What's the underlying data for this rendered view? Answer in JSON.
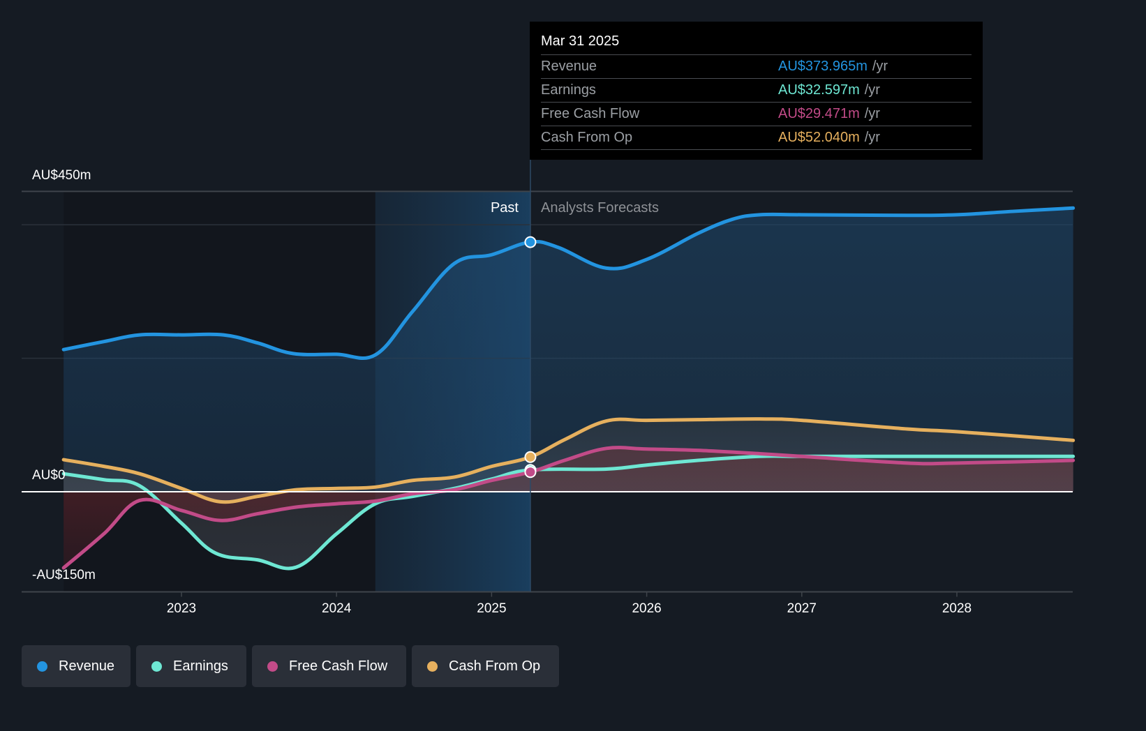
{
  "tooltip": {
    "date": "Mar 31 2025",
    "unit": "/yr",
    "rows": [
      {
        "label": "Revenue",
        "value": "AU$373.965m",
        "color": "#2394e0"
      },
      {
        "label": "Earnings",
        "value": "AU$32.597m",
        "color": "#6ee7d3"
      },
      {
        "label": "Free Cash Flow",
        "value": "AU$29.471m",
        "color": "#c24b88"
      },
      {
        "label": "Cash From Op",
        "value": "AU$52.040m",
        "color": "#e6b05e"
      }
    ]
  },
  "sections": {
    "past": "Past",
    "forecast": "Analysts Forecasts"
  },
  "legend": [
    {
      "label": "Revenue",
      "color": "#2394e0"
    },
    {
      "label": "Earnings",
      "color": "#6ee7d3"
    },
    {
      "label": "Free Cash Flow",
      "color": "#c24b88"
    },
    {
      "label": "Cash From Op",
      "color": "#e6b05e"
    }
  ],
  "chart_data": {
    "type": "line",
    "title": "",
    "xlabel": "",
    "ylabel": "",
    "y_unit": "AU$ millions",
    "ylim": [
      -150,
      450
    ],
    "xlim": [
      2022.24,
      2028.75
    ],
    "y_tick_labels": [
      {
        "value": 450,
        "label": "AU$450m"
      },
      {
        "value": 0,
        "label": "AU$0"
      },
      {
        "value": -150,
        "label": "-AU$150m"
      }
    ],
    "y_gridlines": [
      450,
      400,
      200,
      0,
      -150
    ],
    "x_ticks": [
      {
        "value": 2023,
        "label": "2023"
      },
      {
        "value": 2024,
        "label": "2024"
      },
      {
        "value": 2025,
        "label": "2025"
      },
      {
        "value": 2026,
        "label": "2026"
      },
      {
        "value": 2027,
        "label": "2027"
      },
      {
        "value": 2028,
        "label": "2028"
      }
    ],
    "past_region_start": 2024.25,
    "forecast_start": 2025.25,
    "highlight_date": "Mar 31 2025",
    "legend_position": "bottom-left",
    "series": [
      {
        "name": "Revenue",
        "color": "#2394e0",
        "x": [
          2022.24,
          2022.5,
          2022.73,
          2023.0,
          2023.27,
          2023.49,
          2023.72,
          2024.0,
          2024.25,
          2024.49,
          2024.76,
          2025.0,
          2025.25,
          2025.43,
          2025.74,
          2026.0,
          2026.33,
          2026.55,
          2026.73,
          2027.0,
          2027.68,
          2028.0,
          2028.36,
          2028.75
        ],
        "values": [
          213,
          225,
          235,
          235,
          235,
          223,
          207,
          206,
          205,
          270,
          342,
          355,
          374,
          366,
          335,
          348,
          387,
          408,
          415,
          415,
          414,
          415,
          420,
          425
        ]
      },
      {
        "name": "Earnings",
        "color": "#6ee7d3",
        "x": [
          2022.24,
          2022.5,
          2022.73,
          2023.0,
          2023.22,
          2023.49,
          2023.74,
          2024.0,
          2024.25,
          2024.49,
          2024.76,
          2025.0,
          2025.25,
          2025.74,
          2026.0,
          2026.33,
          2026.73,
          2027.0,
          2027.68,
          2028.75
        ],
        "values": [
          27,
          18,
          9,
          -47,
          -92,
          -102,
          -113,
          -63,
          -18,
          -7,
          5,
          19,
          32.6,
          34,
          40,
          47,
          53,
          53,
          53,
          53
        ]
      },
      {
        "name": "Free Cash Flow",
        "color": "#c24b88",
        "x": [
          2022.24,
          2022.5,
          2022.73,
          2023.0,
          2023.25,
          2023.49,
          2023.74,
          2024.0,
          2024.25,
          2024.49,
          2024.76,
          2025.0,
          2025.25,
          2025.47,
          2025.74,
          2026.0,
          2026.33,
          2026.73,
          2027.0,
          2027.68,
          2028.0,
          2028.75
        ],
        "values": [
          -114,
          -63,
          -13,
          -28,
          -43,
          -33,
          -23,
          -18,
          -14,
          -3,
          3,
          17,
          29.5,
          47,
          65,
          64,
          62,
          57,
          53,
          43,
          43,
          47
        ]
      },
      {
        "name": "Cash From Op",
        "color": "#e6b05e",
        "x": [
          2022.24,
          2022.5,
          2022.73,
          2023.0,
          2023.25,
          2023.49,
          2023.74,
          2024.0,
          2024.25,
          2024.49,
          2024.76,
          2025.0,
          2025.25,
          2025.47,
          2025.74,
          2026.0,
          2026.33,
          2026.73,
          2027.0,
          2027.68,
          2028.0,
          2028.75
        ],
        "values": [
          48,
          38,
          27,
          5,
          -15,
          -7,
          3,
          5,
          7,
          17,
          22,
          38,
          52,
          78,
          106,
          107,
          108,
          109,
          107,
          94,
          90,
          77
        ]
      }
    ]
  }
}
